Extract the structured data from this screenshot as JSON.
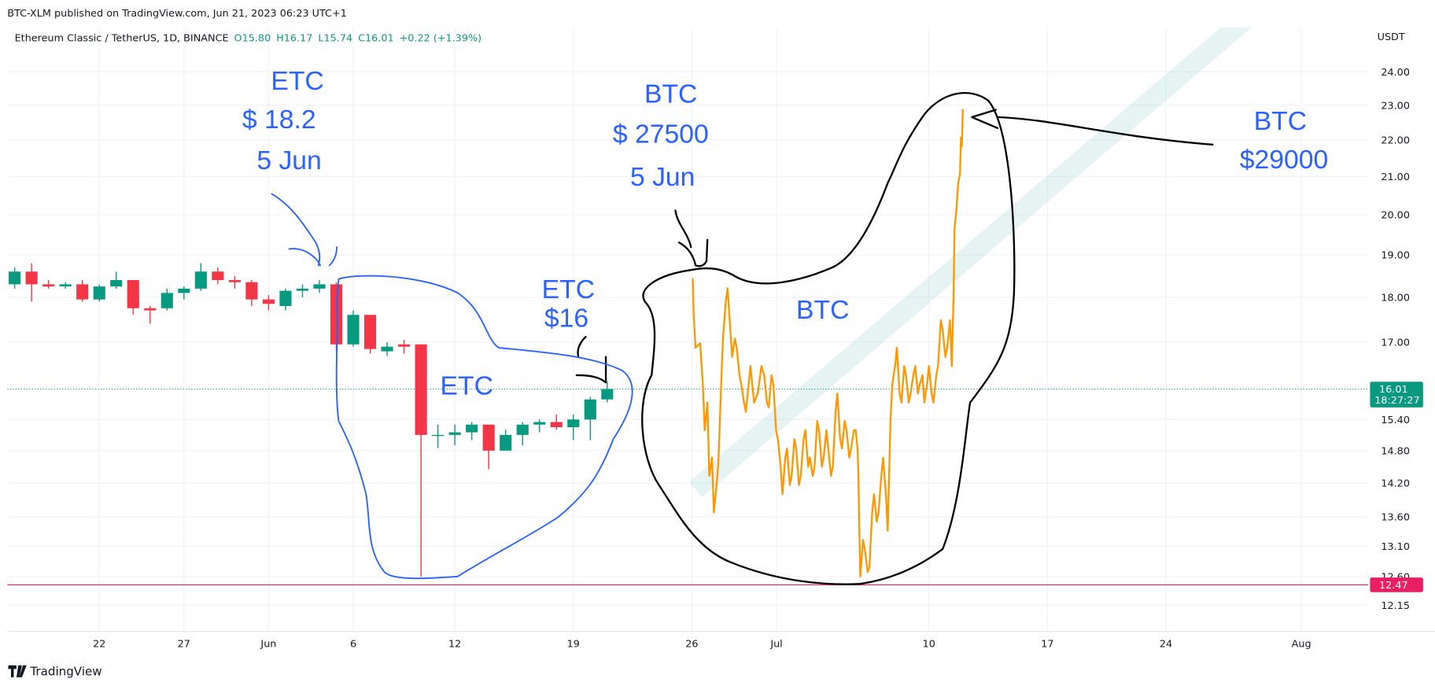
{
  "header": {
    "published": "BTC-XLM published on TradingView.com, Jun 21, 2023 06:23 UTC+1",
    "symbol": "Ethereum Classic / TetherUS, 1D, BINANCE",
    "open": "O15.80",
    "high": "H16.17",
    "low": "L15.74",
    "close": "C16.01",
    "change": "+0.22 (+1.39%)"
  },
  "footer": {
    "logo": "TradingView"
  },
  "annotations": [
    "ETC",
    "$ 18.2",
    "5 Jun",
    "BTC",
    "$ 27500",
    "5 Jun",
    "ETC",
    "$16",
    "ETC",
    "BTC",
    "BTC",
    "$29000"
  ],
  "chart_data": {
    "type": "candlestick",
    "x": [
      "2023-05-17",
      "2023-05-18",
      "2023-05-19",
      "2023-05-20",
      "2023-05-21",
      "2023-05-22",
      "2023-05-23",
      "2023-05-24",
      "2023-05-25",
      "2023-05-26",
      "2023-05-27",
      "2023-05-28",
      "2023-05-29",
      "2023-05-30",
      "2023-05-31",
      "2023-06-01",
      "2023-06-02",
      "2023-06-03",
      "2023-06-04",
      "2023-06-05",
      "2023-06-06",
      "2023-06-07",
      "2023-06-08",
      "2023-06-09",
      "2023-06-10",
      "2023-06-11",
      "2023-06-12",
      "2023-06-13",
      "2023-06-14",
      "2023-06-15",
      "2023-06-16",
      "2023-06-17",
      "2023-06-18",
      "2023-06-19",
      "2023-06-20",
      "2023-06-21"
    ],
    "open": [
      18.3,
      18.6,
      18.3,
      18.25,
      18.3,
      17.95,
      18.25,
      18.4,
      17.75,
      17.75,
      18.1,
      18.2,
      18.6,
      18.4,
      18.35,
      17.95,
      17.8,
      18.15,
      18.2,
      18.3,
      16.95,
      17.6,
      16.8,
      16.95,
      16.95,
      15.1,
      15.1,
      15.15,
      15.3,
      14.8,
      15.1,
      15.3,
      15.35,
      15.25,
      15.4,
      15.8
    ],
    "high": [
      18.7,
      18.8,
      18.4,
      18.35,
      18.4,
      18.3,
      18.6,
      18.4,
      17.8,
      18.2,
      18.25,
      18.8,
      18.7,
      18.5,
      18.4,
      18.05,
      18.2,
      18.3,
      18.4,
      18.35,
      17.7,
      17.6,
      17.0,
      17.05,
      16.95,
      15.3,
      15.3,
      15.35,
      15.3,
      15.2,
      15.35,
      15.4,
      15.5,
      15.5,
      15.85,
      16.17
    ],
    "low": [
      18.2,
      17.9,
      18.2,
      18.2,
      17.9,
      17.9,
      18.2,
      17.6,
      17.4,
      17.7,
      17.95,
      18.15,
      18.3,
      18.2,
      17.8,
      17.7,
      17.7,
      18.0,
      18.1,
      16.8,
      16.9,
      16.75,
      16.7,
      16.75,
      12.6,
      14.85,
      14.9,
      15.0,
      14.45,
      14.8,
      14.9,
      15.15,
      15.2,
      15.0,
      15.0,
      15.74
    ],
    "close": [
      18.6,
      18.3,
      18.25,
      18.3,
      17.95,
      18.25,
      18.4,
      17.75,
      17.7,
      18.1,
      18.2,
      18.6,
      18.4,
      18.35,
      17.95,
      17.85,
      18.15,
      18.2,
      18.3,
      16.95,
      17.6,
      16.85,
      16.9,
      16.9,
      15.1,
      15.1,
      15.15,
      15.3,
      14.8,
      15.1,
      15.3,
      15.35,
      15.25,
      15.4,
      15.8,
      16.01
    ],
    "up_color": "#089981",
    "down_color": "#f23645",
    "log_scale": true,
    "grid": true,
    "ylim": [
      11.75,
      25.4
    ],
    "yticks": [
      {
        "value": 24,
        "label": "24.00"
      },
      {
        "value": 23,
        "label": "23.00"
      },
      {
        "value": 22,
        "label": "22.00"
      },
      {
        "value": 21,
        "label": "21.00"
      },
      {
        "value": 20,
        "label": "20.00"
      },
      {
        "value": 19,
        "label": "19.00"
      },
      {
        "value": 18,
        "label": "18.00"
      },
      {
        "value": 17,
        "label": "17.00"
      },
      {
        "value": 15.4,
        "label": "15.40"
      },
      {
        "value": 14.8,
        "label": "14.80"
      },
      {
        "value": 14.2,
        "label": "14.20"
      },
      {
        "value": 13.6,
        "label": "13.60"
      },
      {
        "value": 13.1,
        "label": "13.10"
      },
      {
        "value": 12.6,
        "label": "12.60"
      },
      {
        "value": 12.15,
        "label": "12.15"
      }
    ],
    "y_axis_unit": "USDT",
    "xlim": [
      "2023-05-16",
      "2023-08-05"
    ],
    "xticks": [
      {
        "value": "2023-05-22",
        "label": "22"
      },
      {
        "value": "2023-05-27",
        "label": "27"
      },
      {
        "value": "2023-06-01",
        "label": "Jun"
      },
      {
        "value": "2023-06-06",
        "label": "6"
      },
      {
        "value": "2023-06-12",
        "label": "12"
      },
      {
        "value": "2023-06-19",
        "label": "19"
      },
      {
        "value": "2023-06-26",
        "label": "26"
      },
      {
        "value": "2023-07-01",
        "label": "Jul"
      },
      {
        "value": "2023-07-10",
        "label": "10"
      },
      {
        "value": "2023-07-17",
        "label": "17"
      },
      {
        "value": "2023-07-24",
        "label": "24"
      },
      {
        "value": "2023-08-01",
        "label": "Aug"
      }
    ],
    "last_price": 16.01,
    "countdown": "18:27:27",
    "price_line": 12.47,
    "price_line_color": "#e91e63"
  }
}
